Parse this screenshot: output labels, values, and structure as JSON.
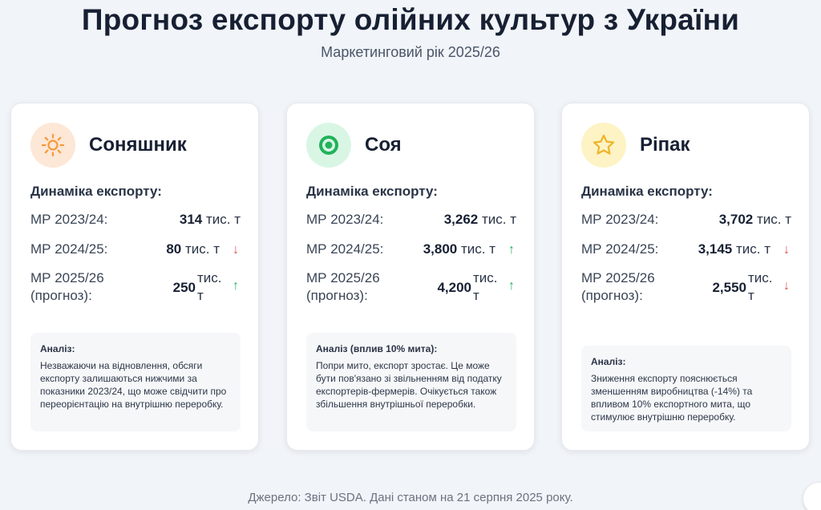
{
  "page": {
    "title": "Прогноз експорту олійних культур з України",
    "subtitle": "Маркетинговий рік 2025/26",
    "source": "Джерело: Звіт USDA. Дані станом на 21 серпня 2025 року."
  },
  "cards": [
    {
      "name": "Соняшник",
      "icon": "sun-icon",
      "dynamics_label": "Динаміка експорту:",
      "rows": [
        {
          "label": "МР 2023/24:",
          "value": "314",
          "unit": "тис. т",
          "trend": ""
        },
        {
          "label": "МР 2024/25:",
          "value": "80",
          "unit": "тис. т",
          "trend": "↓"
        },
        {
          "label": "МР 2025/26 (прогноз):",
          "value": "250",
          "unit": "тис. т",
          "trend": "↑"
        }
      ],
      "analysis_title": "Аналіз:",
      "analysis_text": "Незважаючи на відновлення, обсяги експорту залишаються нижчими за показники 2023/24, що може свідчити про переорієнтацію на внутрішню переробку."
    },
    {
      "name": "Соя",
      "icon": "target-icon",
      "dynamics_label": "Динаміка експорту:",
      "rows": [
        {
          "label": "МР 2023/24:",
          "value": "3,262",
          "unit": "тис. т",
          "trend": ""
        },
        {
          "label": "МР 2024/25:",
          "value": "3,800",
          "unit": "тис. т",
          "trend": "↑"
        },
        {
          "label": "МР 2025/26 (прогноз):",
          "value": "4,200",
          "unit": "тис. т",
          "trend": "↑"
        }
      ],
      "analysis_title": "Аналіз (вплив 10% мита):",
      "analysis_text": "Попри мито, експорт зростає. Це може бути пов'язано зі звільненням від податку експортерів-фермерів. Очікується також збільшення внутрішньої переробки."
    },
    {
      "name": "Ріпак",
      "icon": "star-icon",
      "dynamics_label": "Динаміка експорту:",
      "rows": [
        {
          "label": "МР 2023/24:",
          "value": "3,702",
          "unit": "тис. т",
          "trend": ""
        },
        {
          "label": "МР 2024/25:",
          "value": "3,145",
          "unit": "тис. т",
          "trend": "↓"
        },
        {
          "label": "МР 2025/26 (прогноз):",
          "value": "2,550",
          "unit": "тис. т",
          "trend": "↓"
        }
      ],
      "analysis_title": "Аналіз:",
      "analysis_text": "Зниження експорту пояснюється зменшенням виробництва (-14%) та впливом 10% експортного мита, що стимулює внутрішню переробку."
    }
  ],
  "colors": {
    "down": "#e04f4f",
    "up": "#22b25a",
    "sunflower_accent": "#f59a3a",
    "soy_accent": "#22b25a",
    "rapeseed_accent": "#f0b429"
  }
}
